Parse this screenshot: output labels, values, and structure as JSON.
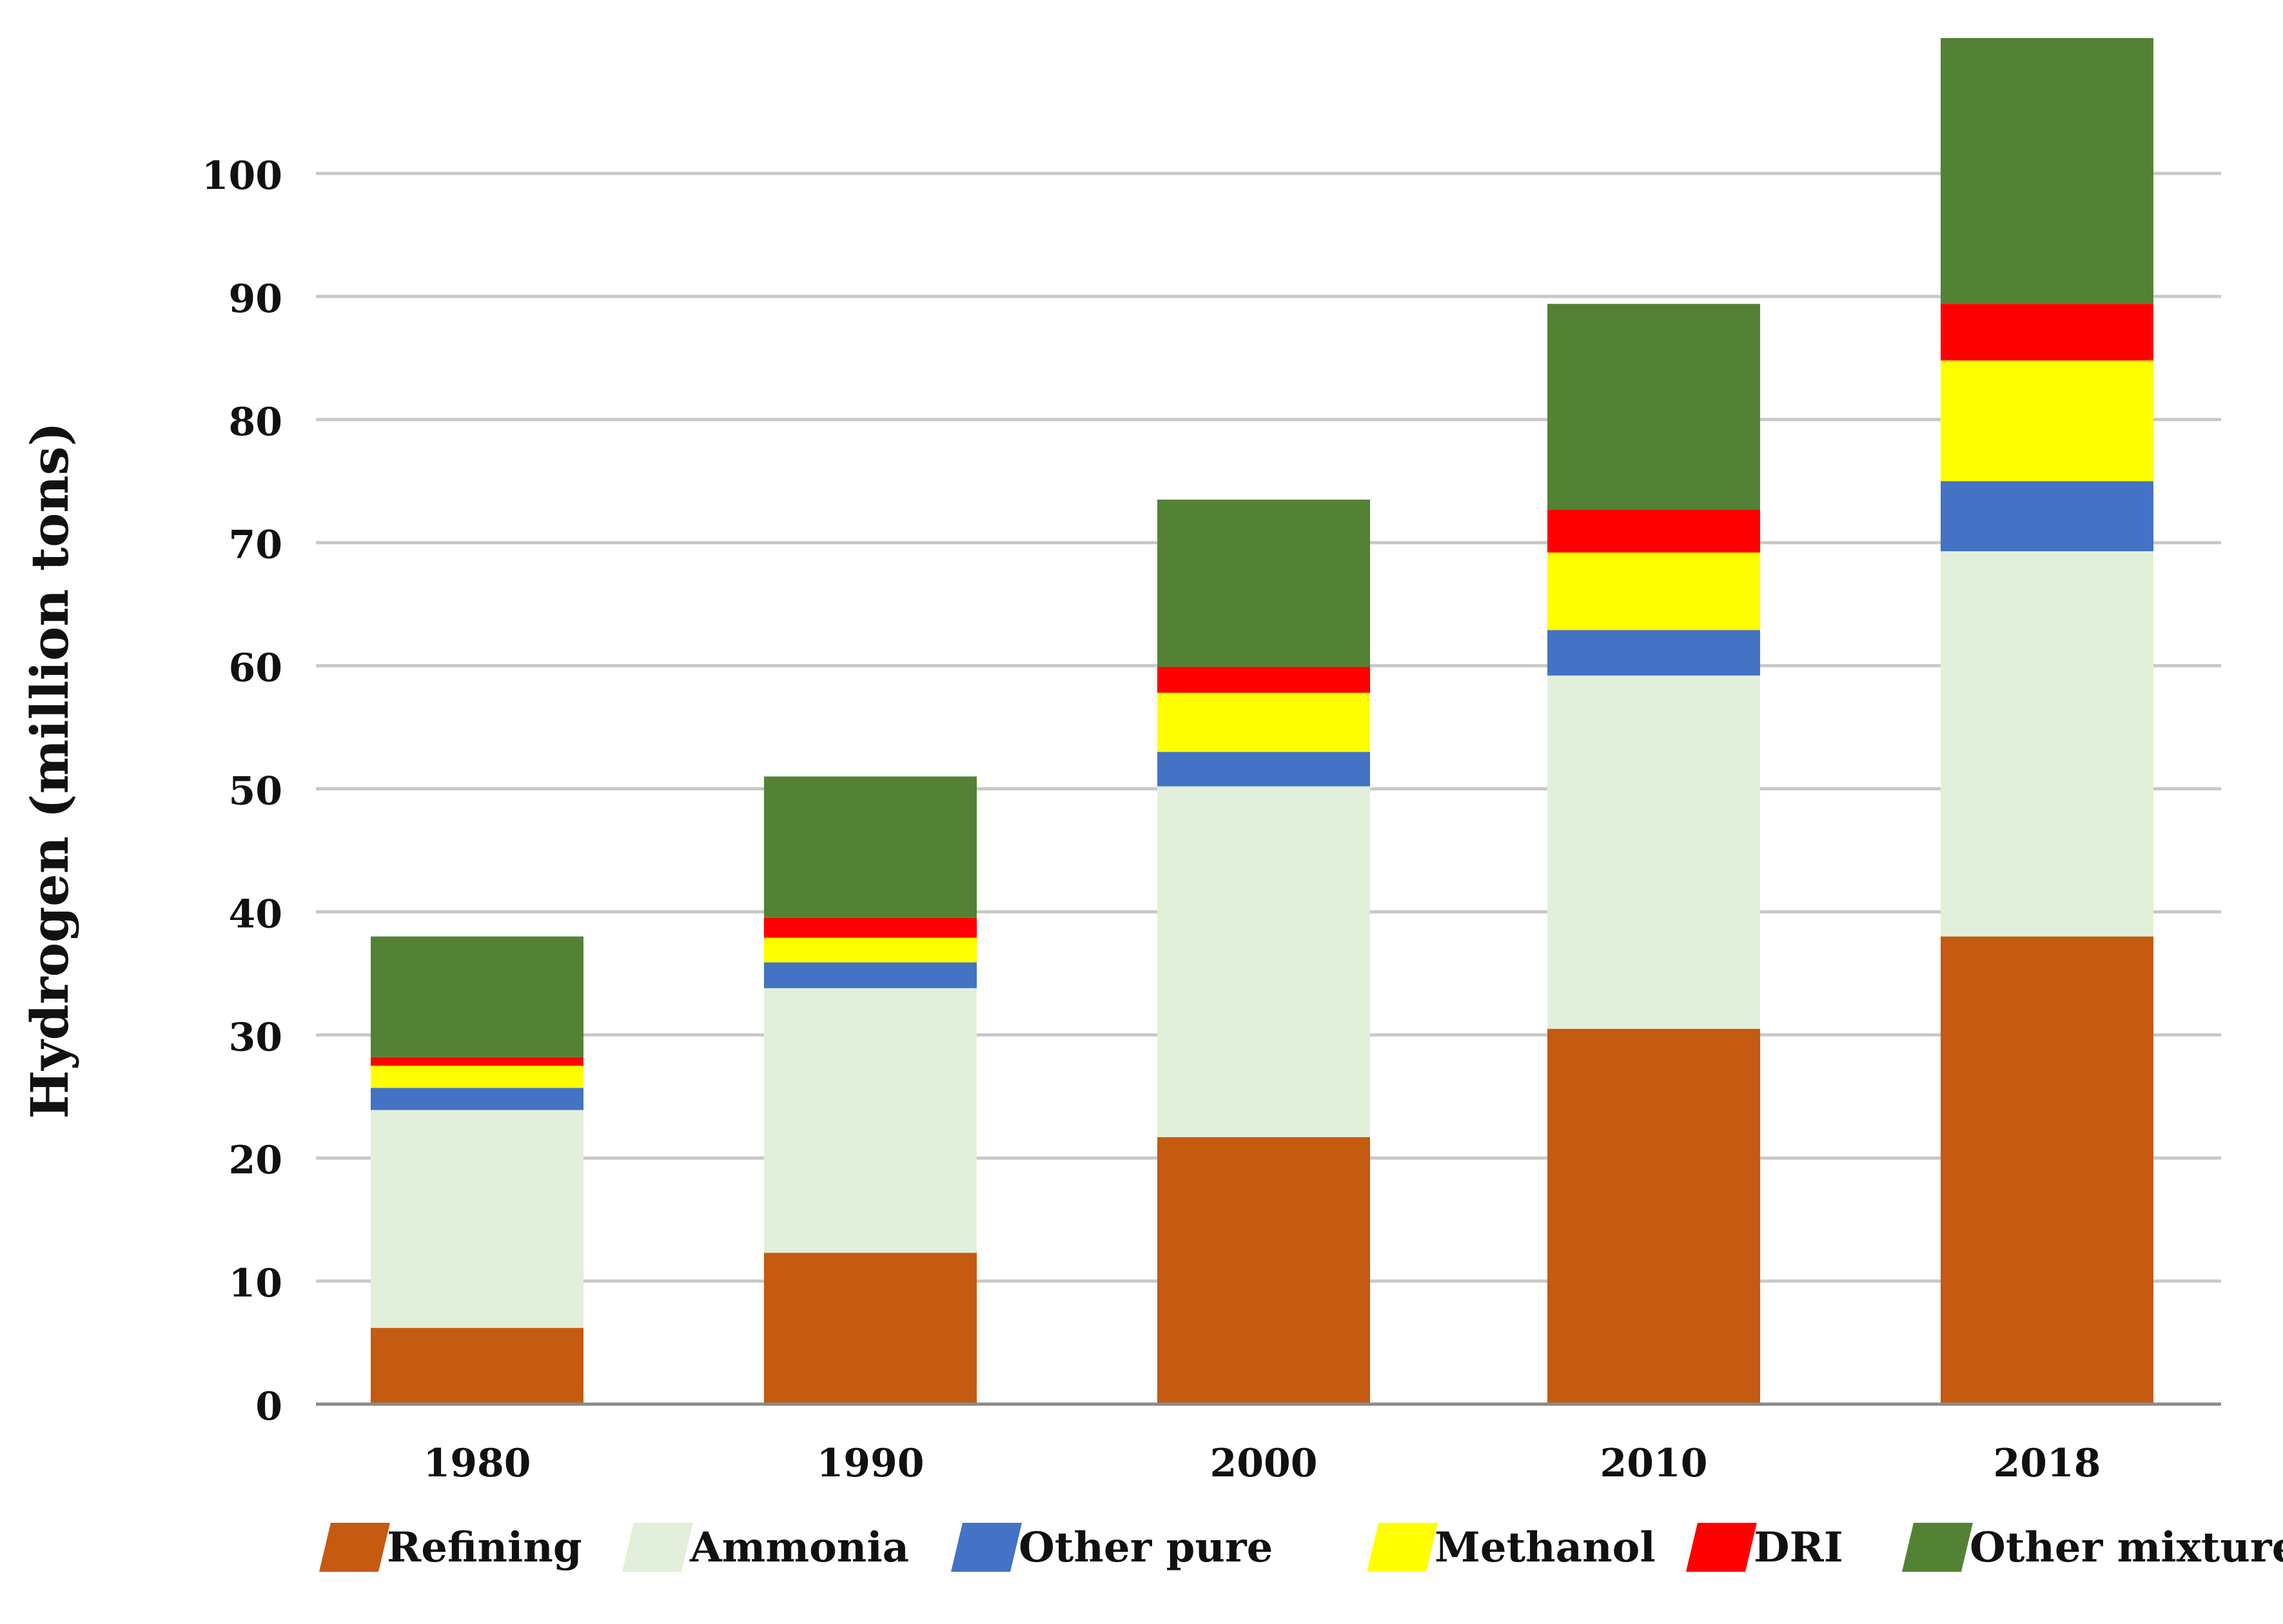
{
  "chart_data": {
    "type": "bar",
    "stacked": true,
    "title": "",
    "xlabel": "",
    "ylabel": "Hydrogen (million tons)",
    "ylim": [
      0,
      110
    ],
    "yticks": [
      0,
      10,
      20,
      30,
      40,
      50,
      60,
      70,
      80,
      90,
      100
    ],
    "grid": true,
    "legend_position": "bottom",
    "categories": [
      "1980",
      "1990",
      "2000",
      "2010",
      "2018"
    ],
    "series": [
      {
        "name": "Refining",
        "color": "#c55a11",
        "values": [
          6.2,
          12.3,
          21.7,
          30.5,
          38.0
        ]
      },
      {
        "name": "Ammonia",
        "color": "#e2efda",
        "values": [
          17.7,
          21.5,
          28.5,
          28.7,
          31.3
        ]
      },
      {
        "name": "Other pure",
        "color": "#4472c4",
        "values": [
          1.8,
          2.1,
          2.8,
          3.7,
          5.7
        ]
      },
      {
        "name": "Methanol",
        "color": "#ffff00",
        "values": [
          1.8,
          2.0,
          4.8,
          6.3,
          9.8
        ]
      },
      {
        "name": "DRI",
        "color": "#ff0000",
        "values": [
          0.7,
          1.6,
          2.1,
          3.5,
          4.6
        ]
      },
      {
        "name": "Other mixture",
        "color": "#548235",
        "values": [
          9.8,
          11.5,
          13.6,
          16.7,
          21.6
        ]
      }
    ]
  }
}
